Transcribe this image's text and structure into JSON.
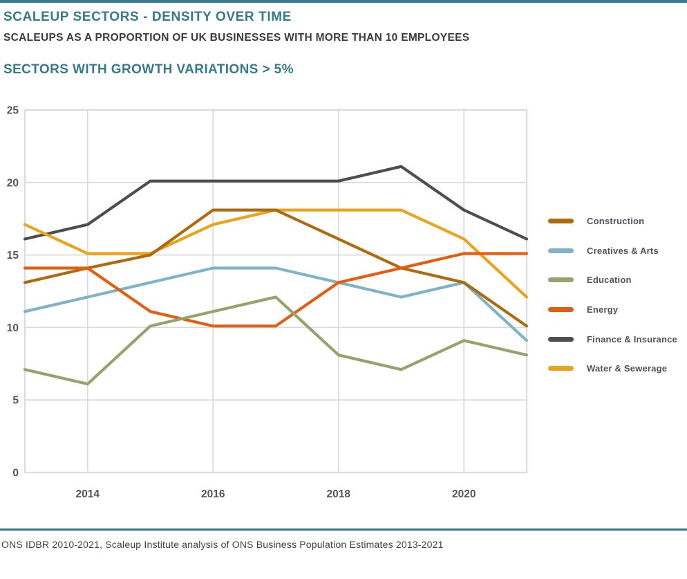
{
  "page": {
    "title": "SCALEUP SECTORS - DENSITY OVER TIME",
    "subtitle": "SCALEUPS AS A PROPORTION OF UK BUSINESSES WITH MORE THAN 10 EMPLOYEES",
    "section_title": "SECTORS WITH GROWTH VARIATIONS > 5%",
    "source_note": "ONS IDBR 2010-2021, Scaleup Institute analysis of ONS Business Population Estimates 2013-2021",
    "accent_color": "#35798C",
    "heading_text_color": "#3B3B3D",
    "axis_label_color": "#55565A",
    "grid_color": "#DBDBDB"
  },
  "chart_data": {
    "type": "line",
    "title": "Scaleup sectors - density over time",
    "xlabel": "",
    "ylabel": "",
    "xlim": [
      2013,
      2021
    ],
    "ylim": [
      0,
      25
    ],
    "x": [
      2013,
      2014,
      2015,
      2016,
      2017,
      2018,
      2019,
      2020,
      2021
    ],
    "x_tick_labels": [
      "2014",
      "2016",
      "2018",
      "2020"
    ],
    "x_ticks": [
      2014,
      2016,
      2018,
      2020
    ],
    "y_ticks": [
      0,
      5,
      10,
      15,
      20,
      25
    ],
    "grid": true,
    "legend_position": "right",
    "series": [
      {
        "name": "Construction",
        "color": "#AD6B0E",
        "values": [
          13.1,
          14.1,
          15.0,
          18.1,
          18.1,
          16.1,
          14.1,
          13.1,
          10.1
        ]
      },
      {
        "name": "Creatives & Arts",
        "color": "#7FB4C7",
        "values": [
          11.1,
          12.1,
          13.1,
          14.1,
          14.1,
          13.1,
          12.1,
          13.1,
          9.1
        ]
      },
      {
        "name": "Education",
        "color": "#94A46C",
        "values": [
          7.1,
          6.1,
          10.1,
          11.1,
          12.1,
          8.1,
          7.1,
          9.1,
          8.1
        ]
      },
      {
        "name": "Energy",
        "color": "#E55D11",
        "values": [
          14.1,
          14.1,
          11.1,
          10.1,
          10.1,
          13.1,
          14.1,
          15.1,
          15.1
        ]
      },
      {
        "name": "Finance & Insurance",
        "color": "#4E4E50",
        "values": [
          16.1,
          17.1,
          20.1,
          20.1,
          20.1,
          20.1,
          21.1,
          18.1,
          16.1
        ]
      },
      {
        "name": "Water & Sewerage",
        "color": "#EAA41B",
        "values": [
          17.1,
          15.1,
          15.1,
          17.1,
          18.1,
          18.1,
          18.1,
          16.1,
          12.1
        ]
      }
    ],
    "draw_order": [
      "Finance & Insurance",
      "Water & Sewerage",
      "Creatives & Arts",
      "Construction",
      "Energy",
      "Education"
    ]
  }
}
